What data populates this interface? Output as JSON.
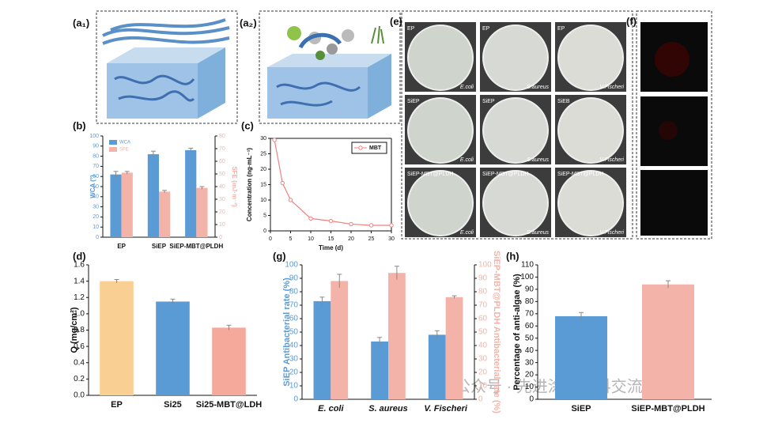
{
  "panels": [
    "(a₁)",
    "(a₂)",
    "(e)",
    "(f)"
  ],
  "dishes": {
    "rows": [
      [
        "EP",
        "EP",
        "EP"
      ],
      [
        "SiEP",
        "SiEP",
        "SiEB"
      ],
      [
        "SiEP-MBT@PLDH",
        "SiEP-MBT@PLDH",
        "SiEP-MBT@PLDH"
      ]
    ],
    "species": [
      "E.coli",
      "S.aureus",
      "V.Fischeri"
    ]
  },
  "watermark": "公众号 · 先进涂层材料交流",
  "chart_data": [
    {
      "type": "bar",
      "label": "(b)",
      "categories": [
        "EP",
        "SiEP",
        "SiEP-MBT@PLDH"
      ],
      "series": [
        {
          "name": "WCA",
          "color": "#5b9bd5",
          "values": [
            62,
            82,
            86
          ],
          "errors": [
            3,
            3,
            2
          ]
        },
        {
          "name": "SFE",
          "color": "#f4b3a8",
          "values": [
            51,
            36,
            39
          ],
          "errors": [
            1,
            1,
            1
          ],
          "axis": "y2"
        }
      ],
      "ylabel": "WCA (°)",
      "y2label": "SFE (mJ·m⁻²)",
      "ylim": [
        0,
        100
      ],
      "yticks": [
        0,
        10,
        20,
        30,
        40,
        50,
        60,
        70,
        80,
        90,
        100
      ],
      "y2lim": [
        0,
        80
      ],
      "y2ticks": [
        0,
        10,
        20,
        30,
        40,
        50,
        60,
        70,
        80
      ],
      "legend": "top-left"
    },
    {
      "type": "line",
      "label": "(c)",
      "x": [
        1,
        3,
        5,
        10,
        15,
        20,
        25,
        30
      ],
      "series": [
        {
          "name": "MBT",
          "color": "#f08080",
          "values": [
            29.5,
            15.5,
            10,
            4,
            3.2,
            2.2,
            1.8,
            1.8
          ]
        }
      ],
      "xlabel": "Time (d)",
      "ylabel": "Concentration (ng·mL⁻¹)",
      "xlim": [
        0,
        30
      ],
      "xticks": [
        0,
        5,
        10,
        15,
        20,
        25,
        30
      ],
      "ylim": [
        0,
        30
      ],
      "yticks": [
        0,
        5,
        10,
        15,
        20,
        25,
        30
      ],
      "legend": "top-right"
    },
    {
      "type": "bar",
      "label": "(d)",
      "categories": [
        "EP",
        "Si25",
        "Si25-MBT@LDH"
      ],
      "values": [
        1.4,
        1.15,
        0.83
      ],
      "errors": [
        0.02,
        0.03,
        0.03
      ],
      "colors": [
        "#f9cf94",
        "#5b9bd5",
        "#f4a99a"
      ],
      "ylabel": "Q (mg/cm²)",
      "ylim": [
        0,
        1.6
      ],
      "yticks": [
        {
          "value": 0,
          "label": "0.0"
        },
        0.2,
        0.4,
        0.6,
        0.8,
        {
          "value": 1,
          "label": "1.0"
        },
        1.2,
        1.4,
        1.6
      ]
    },
    {
      "type": "bar",
      "label": "(g)",
      "categories": [
        "E. coli",
        "S. aureus",
        "V. Fischeri"
      ],
      "series": [
        {
          "color": "#5b9bd5",
          "values": [
            73,
            43,
            48
          ],
          "errors": [
            3,
            3,
            3
          ]
        },
        {
          "color": "#f4b3a8",
          "values": [
            88,
            94,
            76
          ],
          "errors": [
            5,
            5,
            1
          ],
          "axis": "y2"
        }
      ],
      "ylabel": "SiEP Antibacterial rate (%)",
      "y2label": "SiEP-MBT@PLDH Antibacterial rate (%)",
      "ylim": [
        0,
        100
      ],
      "yticks": [
        0,
        10,
        20,
        30,
        40,
        50,
        60,
        70,
        80,
        90,
        100
      ],
      "y2lim": [
        0,
        100
      ],
      "y2ticks": [
        0,
        10,
        20,
        30,
        40,
        50,
        60,
        70,
        80,
        90,
        100
      ]
    },
    {
      "type": "bar",
      "label": "(h)",
      "categories": [
        "SiEP",
        "SiEP-MBT@PLDH"
      ],
      "values": [
        68,
        94
      ],
      "errors": [
        3,
        3
      ],
      "colors": [
        "#5b9bd5",
        "#f4b3a8"
      ],
      "ylabel": "Percentage of anti-algae (%)",
      "ylim": [
        0,
        110
      ],
      "yticks": [
        0,
        10,
        20,
        30,
        40,
        50,
        60,
        70,
        80,
        90,
        100,
        110
      ]
    }
  ]
}
